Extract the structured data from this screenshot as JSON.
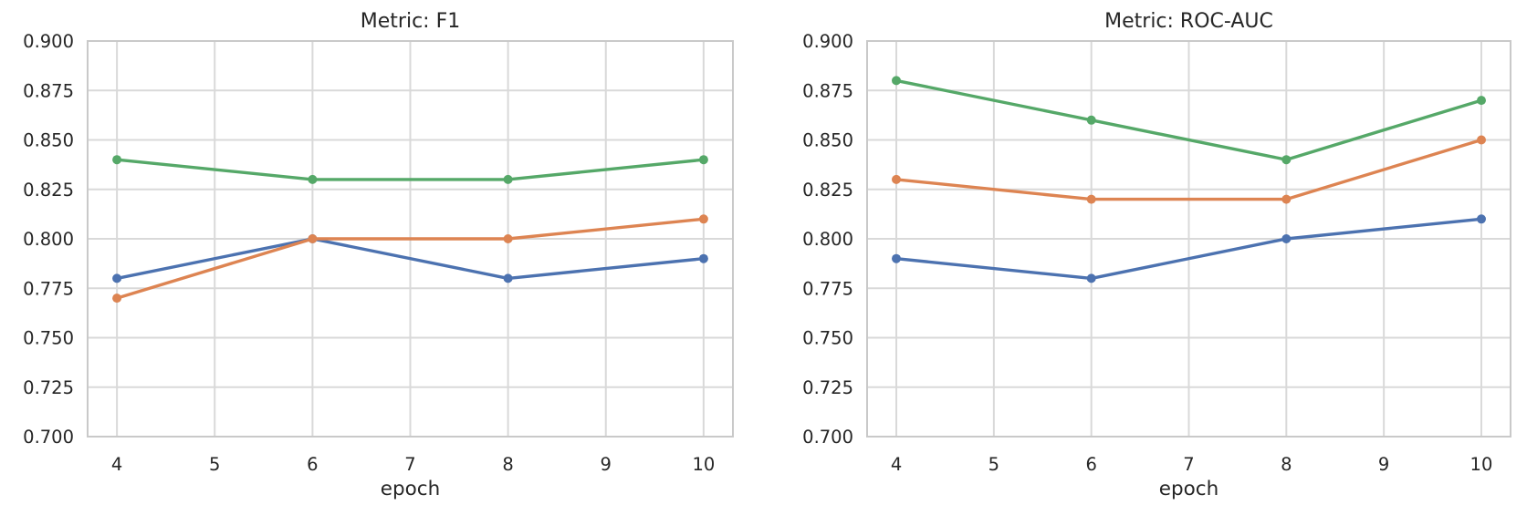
{
  "figure": {
    "background": "#ffffff",
    "grid_color": "#d9d9d9",
    "spine_color": "#c9c9c9",
    "text_color": "#262626"
  },
  "chart_data": [
    {
      "type": "line",
      "title": "Metric: F1",
      "xlabel": "epoch",
      "ylabel": "",
      "grid": true,
      "legend": "none",
      "x": [
        4,
        6,
        8,
        10
      ],
      "xlim": [
        3.7,
        10.3
      ],
      "ylim": [
        0.7,
        0.9
      ],
      "xtick_values": [
        4,
        5,
        6,
        7,
        8,
        9,
        10
      ],
      "xtick_labels": [
        "4",
        "5",
        "6",
        "7",
        "8",
        "9",
        "10"
      ],
      "ytick_values": [
        0.7,
        0.725,
        0.75,
        0.775,
        0.8,
        0.825,
        0.85,
        0.875,
        0.9
      ],
      "ytick_labels": [
        "0.700",
        "0.725",
        "0.750",
        "0.775",
        "0.800",
        "0.825",
        "0.850",
        "0.875",
        "0.900"
      ],
      "series": [
        {
          "name": "blue-series",
          "color": "#4C72B0",
          "values": [
            0.78,
            0.8,
            0.78,
            0.79
          ]
        },
        {
          "name": "orange-series",
          "color": "#DD8452",
          "values": [
            0.77,
            0.8,
            0.8,
            0.81
          ]
        },
        {
          "name": "green-series",
          "color": "#55A868",
          "values": [
            0.84,
            0.83,
            0.83,
            0.84
          ]
        }
      ]
    },
    {
      "type": "line",
      "title": "Metric: ROC-AUC",
      "xlabel": "epoch",
      "ylabel": "",
      "grid": true,
      "legend": "none",
      "x": [
        4,
        6,
        8,
        10
      ],
      "xlim": [
        3.7,
        10.3
      ],
      "ylim": [
        0.7,
        0.9
      ],
      "xtick_values": [
        4,
        5,
        6,
        7,
        8,
        9,
        10
      ],
      "xtick_labels": [
        "4",
        "5",
        "6",
        "7",
        "8",
        "9",
        "10"
      ],
      "ytick_values": [
        0.7,
        0.725,
        0.75,
        0.775,
        0.8,
        0.825,
        0.85,
        0.875,
        0.9
      ],
      "ytick_labels": [
        "0.700",
        "0.725",
        "0.750",
        "0.775",
        "0.800",
        "0.825",
        "0.850",
        "0.875",
        "0.900"
      ],
      "series": [
        {
          "name": "blue-series",
          "color": "#4C72B0",
          "values": [
            0.79,
            0.78,
            0.8,
            0.81
          ]
        },
        {
          "name": "orange-series",
          "color": "#DD8452",
          "values": [
            0.83,
            0.82,
            0.82,
            0.85
          ]
        },
        {
          "name": "green-series",
          "color": "#55A868",
          "values": [
            0.88,
            0.86,
            0.84,
            0.87
          ]
        }
      ]
    }
  ]
}
